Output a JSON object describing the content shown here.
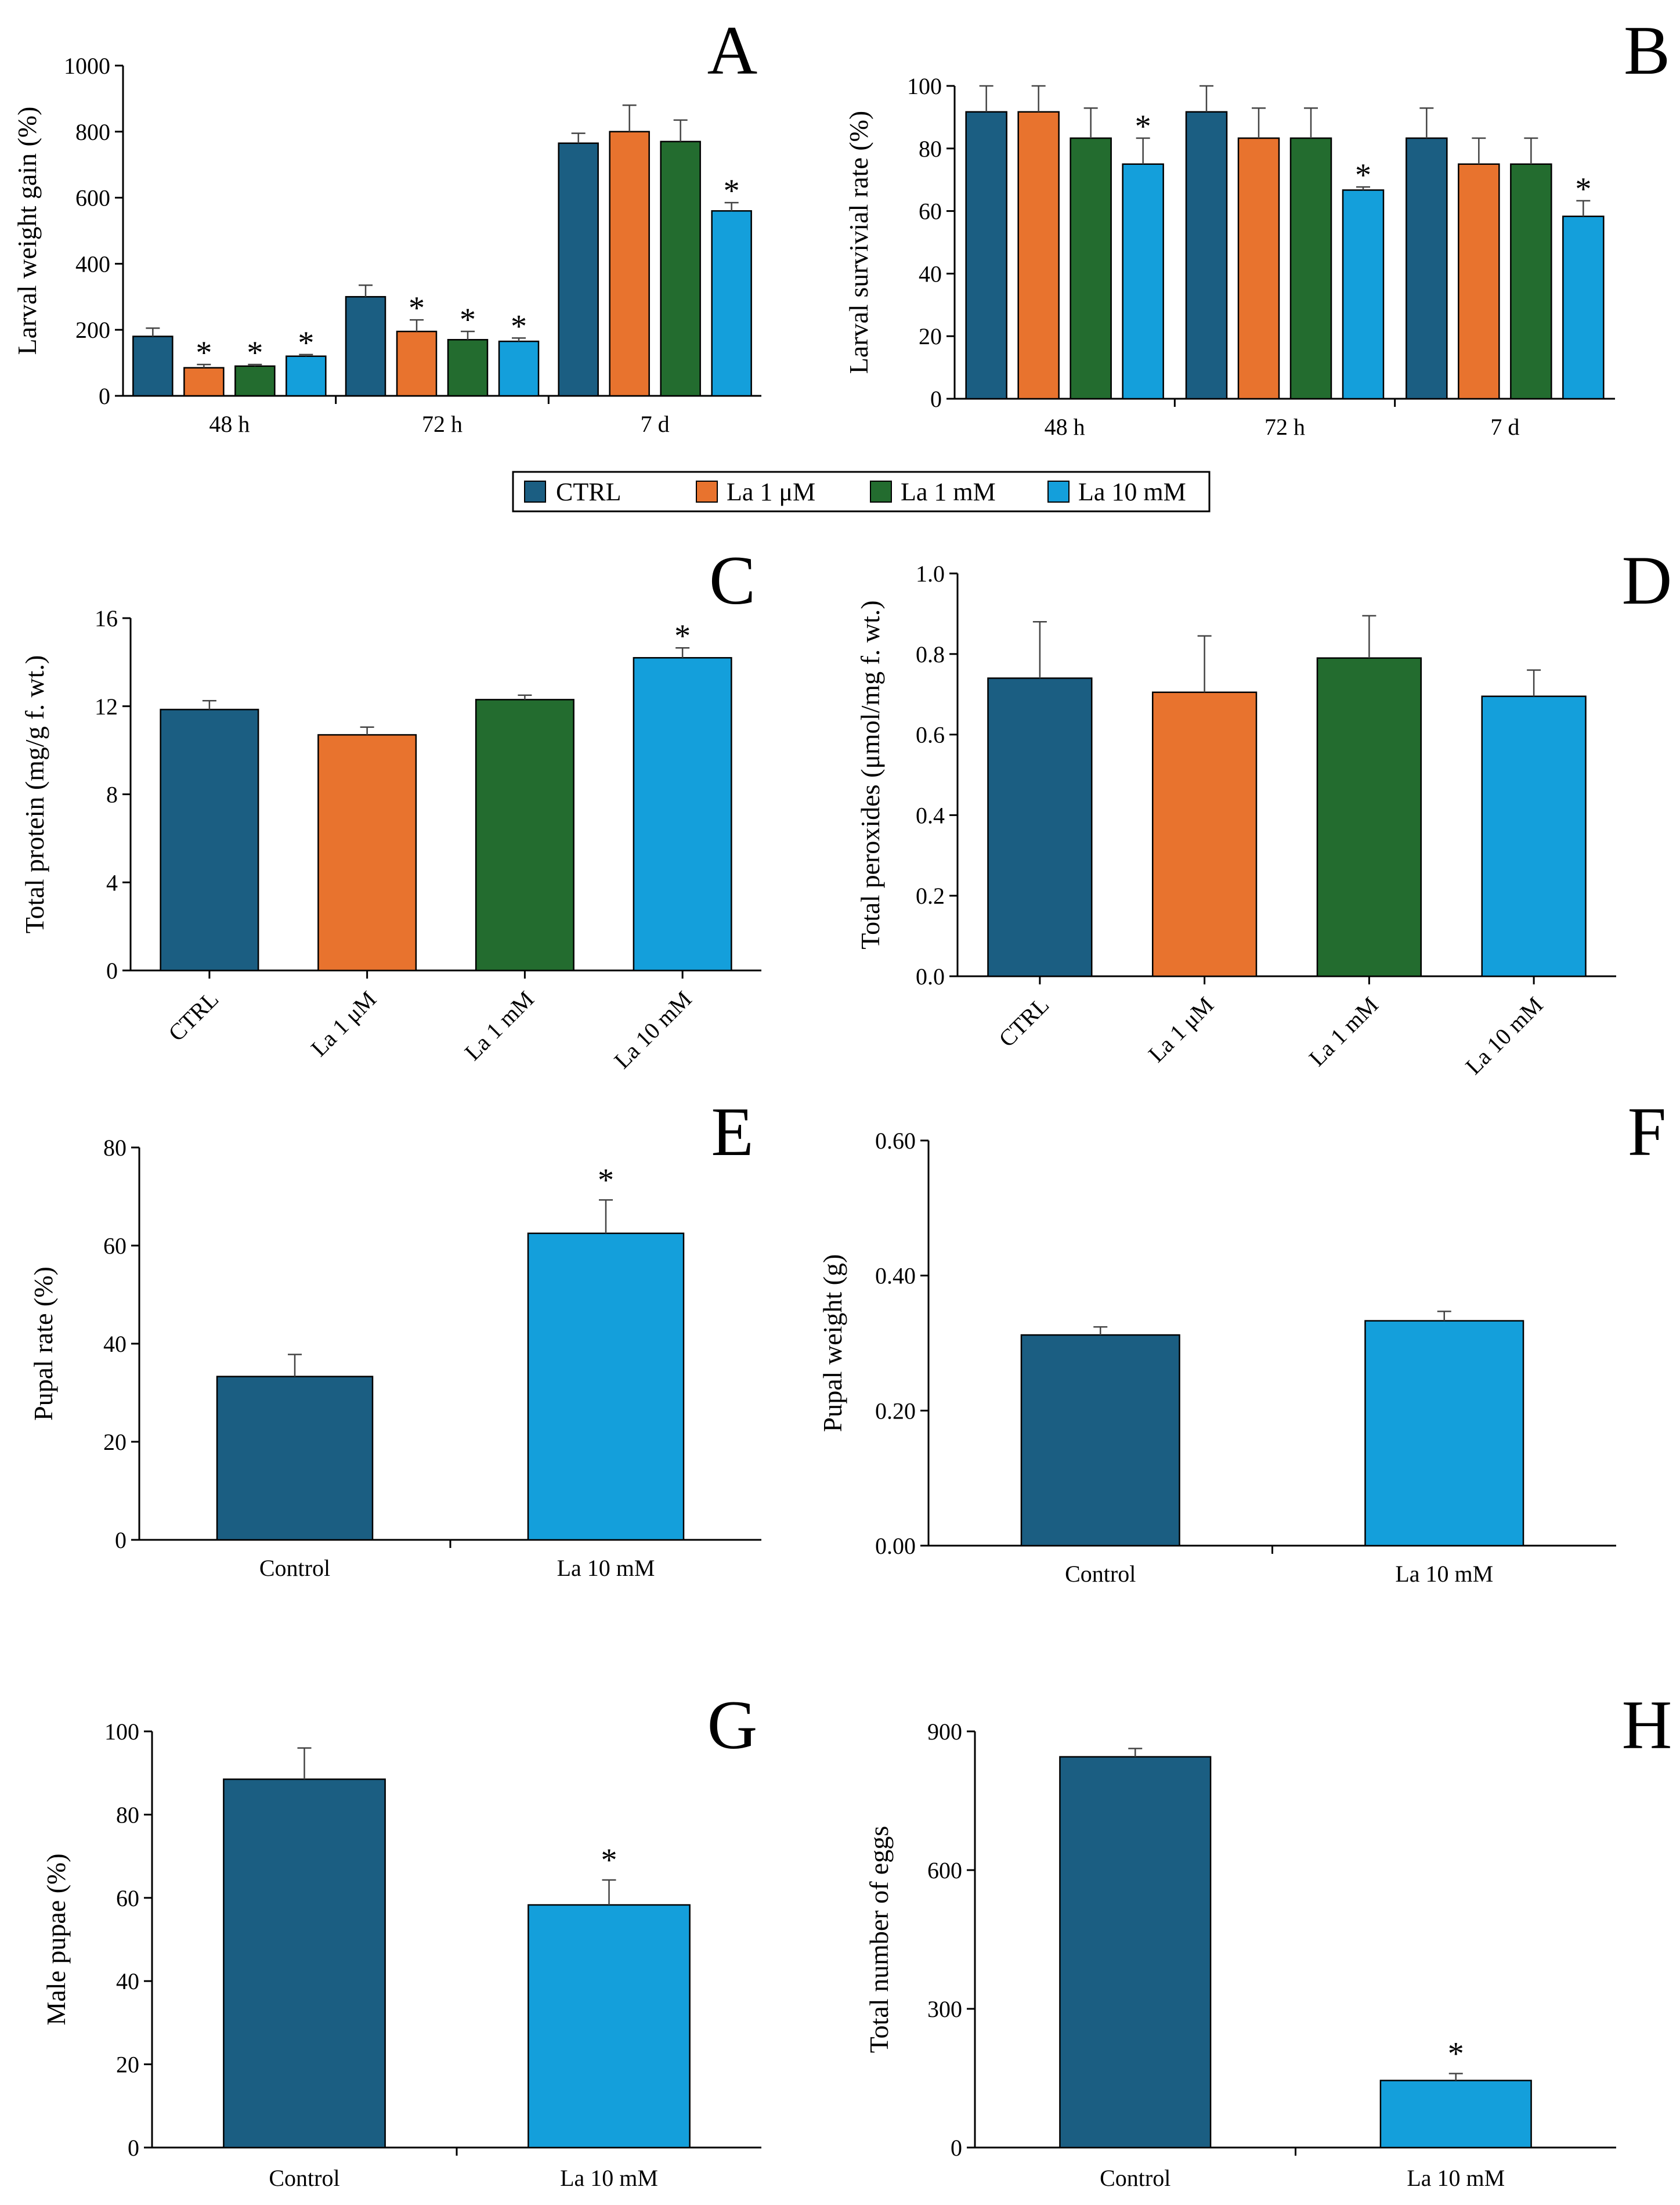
{
  "legend": {
    "items": [
      {
        "label": "CTRL",
        "color": "#1B5E82"
      },
      {
        "label": "La 1 μM",
        "color": "#E8732E"
      },
      {
        "label": "La 1 mM",
        "color": "#236C2F"
      },
      {
        "label": "La 10 mM",
        "color": "#149FDB"
      }
    ]
  },
  "chart_data": [
    {
      "panel": "A",
      "type": "bar",
      "ylabel": "Larval weight gain (%)",
      "ylim": [
        0,
        1000
      ],
      "yticks": [
        "0",
        "200",
        "400",
        "600",
        "800",
        "1000"
      ],
      "categories": [
        "48 h",
        "72 h",
        "7 d"
      ],
      "series": [
        {
          "name": "CTRL",
          "values": [
            180,
            300,
            765
          ],
          "errors": [
            25,
            35,
            30
          ],
          "sig": [
            "",
            "",
            ""
          ]
        },
        {
          "name": "La 1 μM",
          "values": [
            85,
            195,
            800
          ],
          "errors": [
            10,
            35,
            80
          ],
          "sig": [
            "*",
            "*",
            ""
          ]
        },
        {
          "name": "La 1 mM",
          "values": [
            90,
            170,
            770
          ],
          "errors": [
            5,
            25,
            65
          ],
          "sig": [
            "*",
            "*",
            ""
          ]
        },
        {
          "name": "La 10 mM",
          "values": [
            120,
            165,
            560
          ],
          "errors": [
            5,
            10,
            25
          ],
          "sig": [
            "*",
            "*",
            "*"
          ]
        }
      ]
    },
    {
      "panel": "B",
      "type": "bar",
      "ylabel": "Larval survivial rate (%)",
      "ylim": [
        0,
        100
      ],
      "yticks": [
        "0",
        "20",
        "40",
        "60",
        "80",
        "100"
      ],
      "categories": [
        "48 h",
        "72 h",
        "7 d"
      ],
      "series": [
        {
          "name": "CTRL",
          "values": [
            91.7,
            91.7,
            83.3
          ],
          "errors": [
            8.3,
            8.3,
            9.6
          ],
          "sig": [
            "",
            "",
            ""
          ]
        },
        {
          "name": "La 1 μM",
          "values": [
            91.7,
            83.3,
            75
          ],
          "errors": [
            8.3,
            9.6,
            8.3
          ],
          "sig": [
            "",
            "",
            ""
          ]
        },
        {
          "name": "La 1 mM",
          "values": [
            83.3,
            83.3,
            75
          ],
          "errors": [
            9.6,
            9.6,
            8.3
          ],
          "sig": [
            "",
            "",
            ""
          ]
        },
        {
          "name": "La 10 mM",
          "values": [
            75,
            66.7,
            58.3
          ],
          "errors": [
            8.3,
            1,
            5
          ],
          "sig": [
            "*",
            "*",
            "*"
          ]
        }
      ]
    },
    {
      "panel": "C",
      "type": "bar",
      "ylabel": "Total protein (mg/g f. wt.)",
      "ylim": [
        0,
        16
      ],
      "yticks": [
        "0",
        "4",
        "8",
        "12",
        "16"
      ],
      "categories": [
        "CTRL",
        "La 1 μM",
        "La 1 mM",
        "La 10 mM"
      ],
      "values": [
        11.85,
        10.7,
        12.3,
        14.2
      ],
      "errors": [
        0.4,
        0.35,
        0.2,
        0.45
      ],
      "colors": [
        "#1B5E82",
        "#E8732E",
        "#236C2F",
        "#149FDB"
      ],
      "sig": [
        "",
        "",
        "",
        "*"
      ]
    },
    {
      "panel": "D",
      "type": "bar",
      "ylabel": "Total peroxides (μmol/mg f. wt.)",
      "ylim": [
        0,
        1
      ],
      "yticks": [
        "0.0",
        "0.2",
        "0.4",
        "0.6",
        "0.8",
        "1.0"
      ],
      "categories": [
        "CTRL",
        "La 1 μM",
        "La 1 mM",
        "La 10 mM"
      ],
      "values": [
        0.74,
        0.705,
        0.79,
        0.695
      ],
      "errors": [
        0.14,
        0.14,
        0.105,
        0.065
      ],
      "colors": [
        "#1B5E82",
        "#E8732E",
        "#236C2F",
        "#149FDB"
      ],
      "sig": [
        "",
        "",
        "",
        ""
      ]
    },
    {
      "panel": "E",
      "type": "bar",
      "ylabel": "Pupal rate (%)",
      "ylim": [
        0,
        80
      ],
      "yticks": [
        "0",
        "20",
        "40",
        "60",
        "80"
      ],
      "categories": [
        "Control",
        "La 10 mM"
      ],
      "values": [
        33.3,
        62.5
      ],
      "errors": [
        4.5,
        6.8
      ],
      "colors": [
        "#1B5E82",
        "#149FDB"
      ],
      "sig": [
        "",
        "*"
      ]
    },
    {
      "panel": "F",
      "type": "bar",
      "ylabel": "Pupal weight (g)",
      "ylim": [
        0,
        0.6
      ],
      "yticks": [
        "0.00",
        "0.20",
        "0.40",
        "0.60"
      ],
      "categories": [
        "Control",
        "La 10 mM"
      ],
      "values": [
        0.312,
        0.333
      ],
      "errors": [
        0.012,
        0.014
      ],
      "colors": [
        "#1B5E82",
        "#149FDB"
      ],
      "sig": [
        "",
        ""
      ]
    },
    {
      "panel": "G",
      "type": "bar",
      "ylabel": "Male pupae (%)",
      "ylim": [
        0,
        100
      ],
      "yticks": [
        "0",
        "20",
        "40",
        "60",
        "80",
        "100"
      ],
      "categories": [
        "Control",
        "La 10 mM"
      ],
      "values": [
        88.5,
        58.3
      ],
      "errors": [
        7.5,
        6
      ],
      "colors": [
        "#1B5E82",
        "#149FDB"
      ],
      "sig": [
        "",
        "*"
      ]
    },
    {
      "panel": "H",
      "type": "bar",
      "ylabel": "Total number of eggs",
      "ylim": [
        0,
        900
      ],
      "yticks": [
        "0",
        "300",
        "600",
        "900"
      ],
      "categories": [
        "Control",
        "La 10 mM"
      ],
      "values": [
        845,
        145
      ],
      "errors": [
        18,
        15
      ],
      "colors": [
        "#1B5E82",
        "#149FDB"
      ],
      "sig": [
        "",
        "*"
      ]
    }
  ]
}
